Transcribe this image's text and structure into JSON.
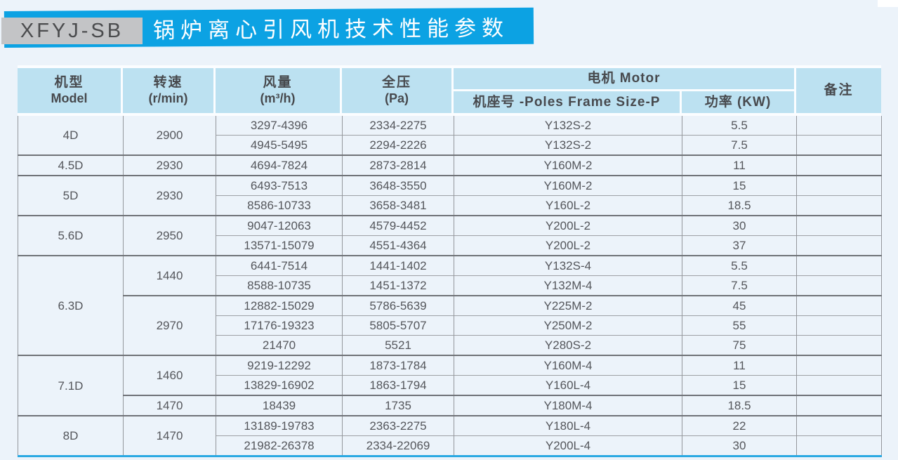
{
  "banner": {
    "code": "XFYJ-SB",
    "title": "锅炉离心引风机技术性能参数"
  },
  "colors": {
    "banner_blue": "#0ca2e3",
    "header_blue": "#bce1f1",
    "table_bottom_blue": "#2ba9e2",
    "code_box_gray": "#c3c4c6",
    "page_background": "#ecf3fa"
  },
  "table": {
    "headers": {
      "model": {
        "zh": "机型",
        "en": "Model"
      },
      "speed": {
        "zh": "转速",
        "en": "(r/min)"
      },
      "airflow": {
        "zh": "风量",
        "en": "(m³/h)"
      },
      "pressure": {
        "zh": "全压",
        "en": "(Pa)"
      },
      "motor_group": "电机 Motor",
      "frame": "机座号 -Poles Frame Size-P",
      "power": "功率 (KW)",
      "remarks": "备注"
    },
    "groups": [
      {
        "model": "4D",
        "subs": [
          {
            "speed": "2900",
            "rows": [
              [
                "3297-4396",
                "2334-2275",
                "Y132S-2",
                "5.5"
              ],
              [
                "4945-5495",
                "2294-2226",
                "Y132S-2",
                "7.5"
              ]
            ]
          }
        ]
      },
      {
        "model": "4.5D",
        "subs": [
          {
            "speed": "2930",
            "rows": [
              [
                "4694-7824",
                "2873-2814",
                "Y160M-2",
                "11"
              ]
            ]
          }
        ]
      },
      {
        "model": "5D",
        "subs": [
          {
            "speed": "2930",
            "rows": [
              [
                "6493-7513",
                "3648-3550",
                "Y160M-2",
                "15"
              ],
              [
                "8586-10733",
                "3658-3481",
                "Y160L-2",
                "18.5"
              ]
            ]
          }
        ]
      },
      {
        "model": "5.6D",
        "subs": [
          {
            "speed": "2950",
            "rows": [
              [
                "9047-12063",
                "4579-4452",
                "Y200L-2",
                "30"
              ],
              [
                "13571-15079",
                "4551-4364",
                "Y200L-2",
                "37"
              ]
            ]
          }
        ]
      },
      {
        "model": "6.3D",
        "subs": [
          {
            "speed": "1440",
            "rows": [
              [
                "6441-7514",
                "1441-1402",
                "Y132S-4",
                "5.5"
              ],
              [
                "8588-10735",
                "1451-1372",
                "Y132M-4",
                "7.5"
              ]
            ]
          },
          {
            "speed": "2970",
            "rows": [
              [
                "12882-15029",
                "5786-5639",
                "Y225M-2",
                "45"
              ],
              [
                "17176-19323",
                "5805-5707",
                "Y250M-2",
                "55"
              ],
              [
                "21470",
                "5521",
                "Y280S-2",
                "75"
              ]
            ]
          }
        ]
      },
      {
        "model": "7.1D",
        "subs": [
          {
            "speed": "1460",
            "rows": [
              [
                "9219-12292",
                "1873-1784",
                "Y160M-4",
                "11"
              ],
              [
                "13829-16902",
                "1863-1794",
                "Y160L-4",
                "15"
              ]
            ]
          },
          {
            "speed": "1470",
            "rows": [
              [
                "18439",
                "1735",
                "Y180M-4",
                "18.5"
              ]
            ]
          }
        ]
      },
      {
        "model": "8D",
        "subs": [
          {
            "speed": "1470",
            "rows": [
              [
                "13189-19783",
                "2363-2275",
                "Y180L-4",
                "22"
              ],
              [
                "21982-26378",
                "2334-22069",
                "Y200L-4",
                "30"
              ]
            ]
          }
        ]
      }
    ]
  }
}
